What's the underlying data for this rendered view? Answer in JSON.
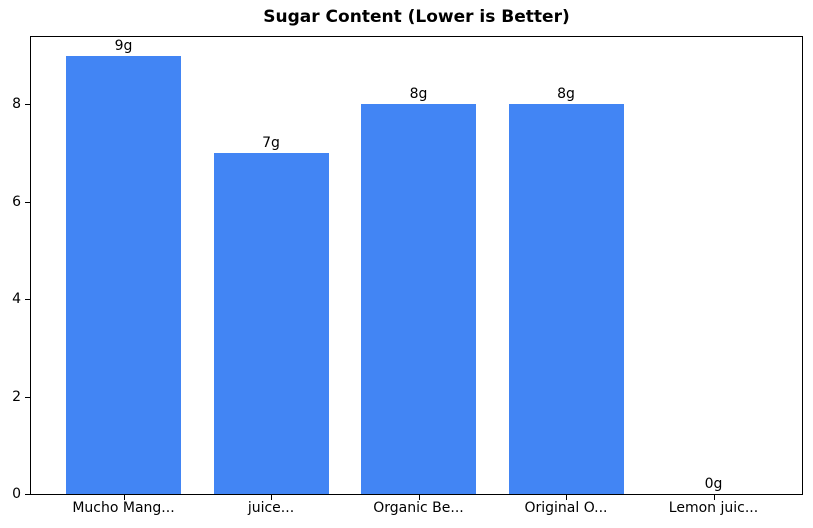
{
  "chart_data": {
    "type": "bar",
    "title": "Sugar Content (Lower is Better)",
    "categories": [
      "Mucho Mang...",
      "juice...",
      "Organic Be...",
      "Original O...",
      "Lemon juic..."
    ],
    "values": [
      9,
      7,
      8,
      8,
      0
    ],
    "value_labels": [
      "9g",
      "7g",
      "8g",
      "8g",
      "0g"
    ],
    "xlabel": "",
    "ylabel": "",
    "yticks": [
      0,
      2,
      4,
      6,
      8
    ],
    "ytick_labels": [
      "0",
      "2",
      "4",
      "6",
      "8"
    ],
    "ylim": [
      0,
      9.38
    ],
    "grid": false,
    "legend_position": "none",
    "bar_color": "#4285f4",
    "axis_color": "#000000",
    "background_color": "#ffffff"
  }
}
